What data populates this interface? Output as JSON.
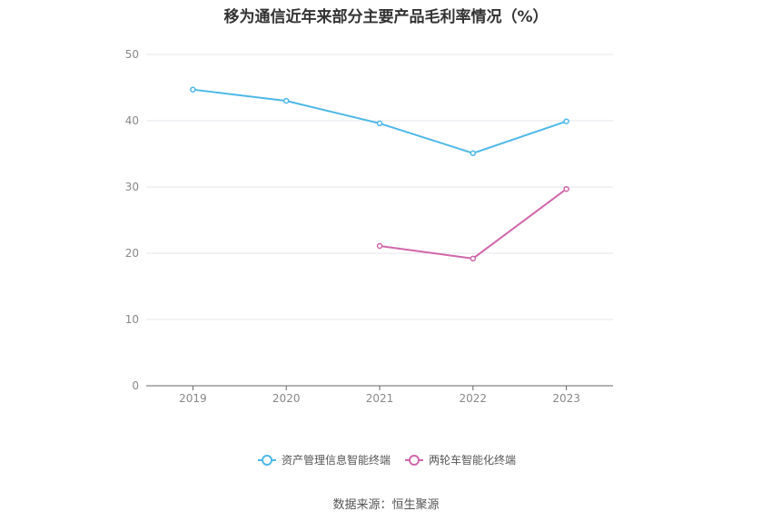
{
  "chart_data": {
    "type": "line",
    "title": "移为通信近年来部分主要产品毛利率情况（%）",
    "categories": [
      "2019",
      "2020",
      "2021",
      "2022",
      "2023"
    ],
    "ylim": [
      0,
      50
    ],
    "yticks": [
      "0",
      "10",
      "20",
      "30",
      "40",
      "50"
    ],
    "grid": true,
    "legend_position": "bottom",
    "series": [
      {
        "name": "资产管理信息智能终端",
        "color": "#4db8e8",
        "values": [
          44.7,
          43.0,
          39.6,
          35.1,
          39.9
        ]
      },
      {
        "name": "两轮车智能化终端",
        "color": "#d066aa",
        "values": [
          null,
          null,
          21.1,
          19.2,
          29.7
        ]
      }
    ]
  },
  "source": "数据来源：恒生聚源"
}
